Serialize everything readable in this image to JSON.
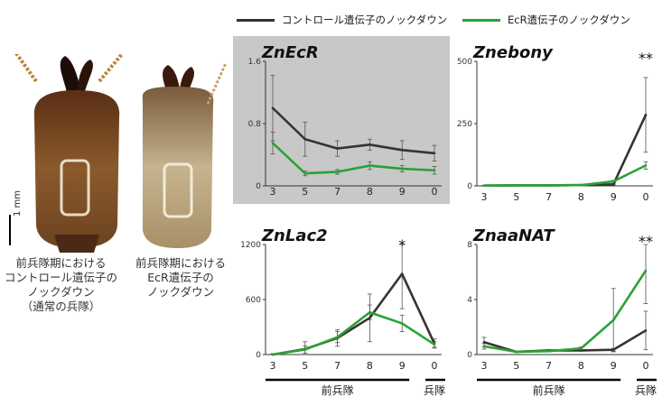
{
  "legend": {
    "control_label": "コントロール遺伝子のノックダウン",
    "ecr_label": "EcR遺伝子のノックダウン",
    "control_color": "#3a3230",
    "ecr_color": "#2aa234"
  },
  "photos": {
    "scale_label": "1 mm",
    "left_caption": [
      "前兵隊期における",
      "コントロール遺伝子の",
      "ノックダウン",
      "（通常の兵隊）"
    ],
    "right_caption": [
      "前兵隊期における",
      "EcR遺伝子の",
      "ノックダウン"
    ]
  },
  "stage_labels": {
    "presoldier": "前兵隊",
    "soldier": "兵隊"
  },
  "significance": {
    "znebony": "**",
    "znlac2": "*",
    "znaanat": "**"
  },
  "chart_data": [
    {
      "type": "line",
      "title": "ZnEcR",
      "categories": [
        "3",
        "5",
        "7",
        "8",
        "9",
        "0"
      ],
      "ylim": [
        0,
        1.6
      ],
      "yticks": [
        "0",
        "0.8",
        "1.6"
      ],
      "ytick_values": [
        0,
        0.8,
        1.6
      ],
      "background": "#c8c8c8",
      "series": [
        {
          "key": "control",
          "values": [
            1.0,
            0.6,
            0.48,
            0.53,
            0.46,
            0.42
          ],
          "err": [
            0.42,
            0.22,
            0.1,
            0.07,
            0.12,
            0.1
          ]
        },
        {
          "key": "ecr",
          "values": [
            0.55,
            0.16,
            0.18,
            0.26,
            0.22,
            0.2
          ],
          "err": [
            0.14,
            0.03,
            0.03,
            0.05,
            0.04,
            0.05
          ]
        }
      ]
    },
    {
      "type": "line",
      "title": "Znebony",
      "categories": [
        "3",
        "5",
        "7",
        "8",
        "9",
        "0"
      ],
      "ylim": [
        0,
        500
      ],
      "yticks": [
        "0",
        "250",
        "500"
      ],
      "ytick_values": [
        0,
        250,
        500
      ],
      "background": "#ffffff",
      "series": [
        {
          "key": "control",
          "values": [
            1,
            2,
            2,
            3,
            6,
            285
          ],
          "err": [
            1,
            1,
            1,
            1,
            2,
            150
          ]
        },
        {
          "key": "ecr",
          "values": [
            1,
            2,
            2,
            3,
            18,
            82
          ],
          "err": [
            1,
            1,
            1,
            1,
            4,
            15
          ]
        }
      ]
    },
    {
      "type": "line",
      "title": "ZnLac2",
      "categories": [
        "3",
        "5",
        "7",
        "8",
        "9",
        "0"
      ],
      "ylim": [
        0,
        1200
      ],
      "yticks": [
        "0",
        "600",
        "1200"
      ],
      "ytick_values": [
        0,
        600,
        1200
      ],
      "background": "#ffffff",
      "series": [
        {
          "key": "control",
          "values": [
            0,
            60,
            180,
            400,
            880,
            120
          ],
          "err": [
            10,
            80,
            90,
            260,
            380,
            50
          ]
        },
        {
          "key": "ecr",
          "values": [
            0,
            55,
            190,
            460,
            340,
            110
          ],
          "err": [
            10,
            40,
            60,
            80,
            90,
            30
          ]
        }
      ]
    },
    {
      "type": "line",
      "title": "ZnaaNAT",
      "categories": [
        "3",
        "5",
        "7",
        "8",
        "9",
        "0"
      ],
      "ylim": [
        0,
        8
      ],
      "yticks": [
        "0",
        "4",
        "8"
      ],
      "ytick_values": [
        0,
        4,
        8
      ],
      "background": "#ffffff",
      "series": [
        {
          "key": "control",
          "values": [
            0.9,
            0.2,
            0.3,
            0.3,
            0.35,
            1.75
          ],
          "err": [
            0.35,
            0.05,
            0.05,
            0.05,
            0.1,
            1.4
          ]
        },
        {
          "key": "ecr",
          "values": [
            0.6,
            0.2,
            0.25,
            0.45,
            2.5,
            6.1
          ],
          "err": [
            0.2,
            0.05,
            0.05,
            0.1,
            2.3,
            2.4
          ]
        }
      ]
    }
  ]
}
